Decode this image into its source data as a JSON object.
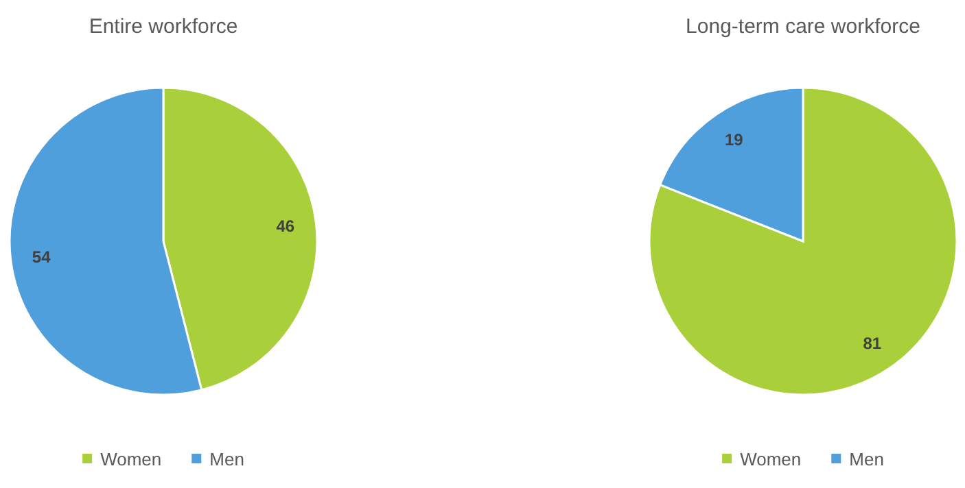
{
  "chart_data": [
    {
      "type": "pie",
      "title": "Entire workforce",
      "categories": [
        "Women",
        "Men"
      ],
      "values": [
        46,
        54
      ],
      "colors": [
        "#a9d03a",
        "#4e9fdc"
      ],
      "data_labels": true,
      "legend": "bottom"
    },
    {
      "type": "pie",
      "title": "Long-term care workforce",
      "categories": [
        "Women",
        "Men"
      ],
      "values": [
        81,
        19
      ],
      "colors": [
        "#a9d03a",
        "#4e9fdc"
      ],
      "data_labels": true,
      "legend": "bottom"
    }
  ]
}
